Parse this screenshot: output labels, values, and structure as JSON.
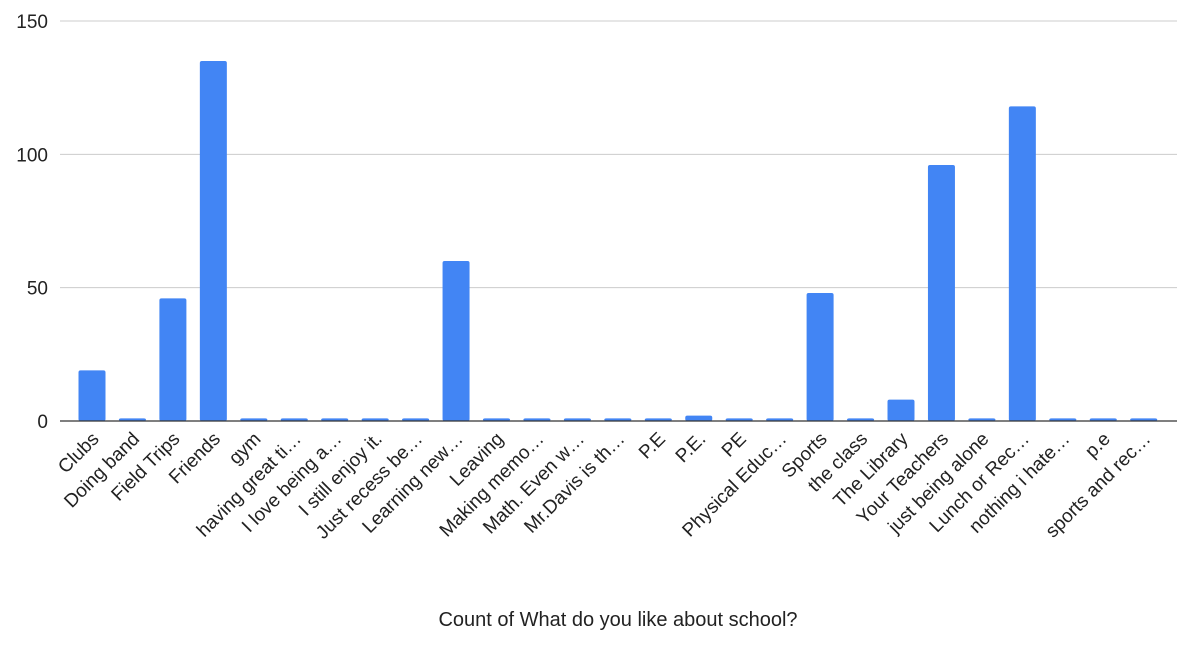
{
  "chart_data": {
    "type": "bar",
    "title": "",
    "xlabel": "Count of What do you like about school?",
    "ylabel": "",
    "ylim": [
      0,
      150
    ],
    "yticks": [
      0,
      50,
      100,
      150
    ],
    "grid": true,
    "bar_color": "#4285f4",
    "gridline_color": "#cccccc",
    "categories": [
      "Clubs",
      "Doing band",
      "Field Trips",
      "Friends",
      "gym",
      "having great ti…",
      "I love being a…",
      "I still enjoy it.",
      "Just recess be…",
      "Learning new…",
      "Leaving",
      "Making memo…",
      "Math. Even w…",
      "Mr.Davis is th…",
      "P.E",
      "P.E.",
      "PE",
      "Physical Educ…",
      "Sports",
      "the class",
      "The Library",
      "Your Teachers",
      "just being alone",
      "Lunch or Rec…",
      "nothing i hate…",
      "p.e",
      "sports and rec…"
    ],
    "values": [
      19,
      1,
      46,
      135,
      1,
      1,
      1,
      1,
      1,
      60,
      1,
      1,
      1,
      1,
      1,
      2,
      1,
      1,
      48,
      1,
      8,
      96,
      1,
      118,
      1,
      1,
      1
    ]
  }
}
